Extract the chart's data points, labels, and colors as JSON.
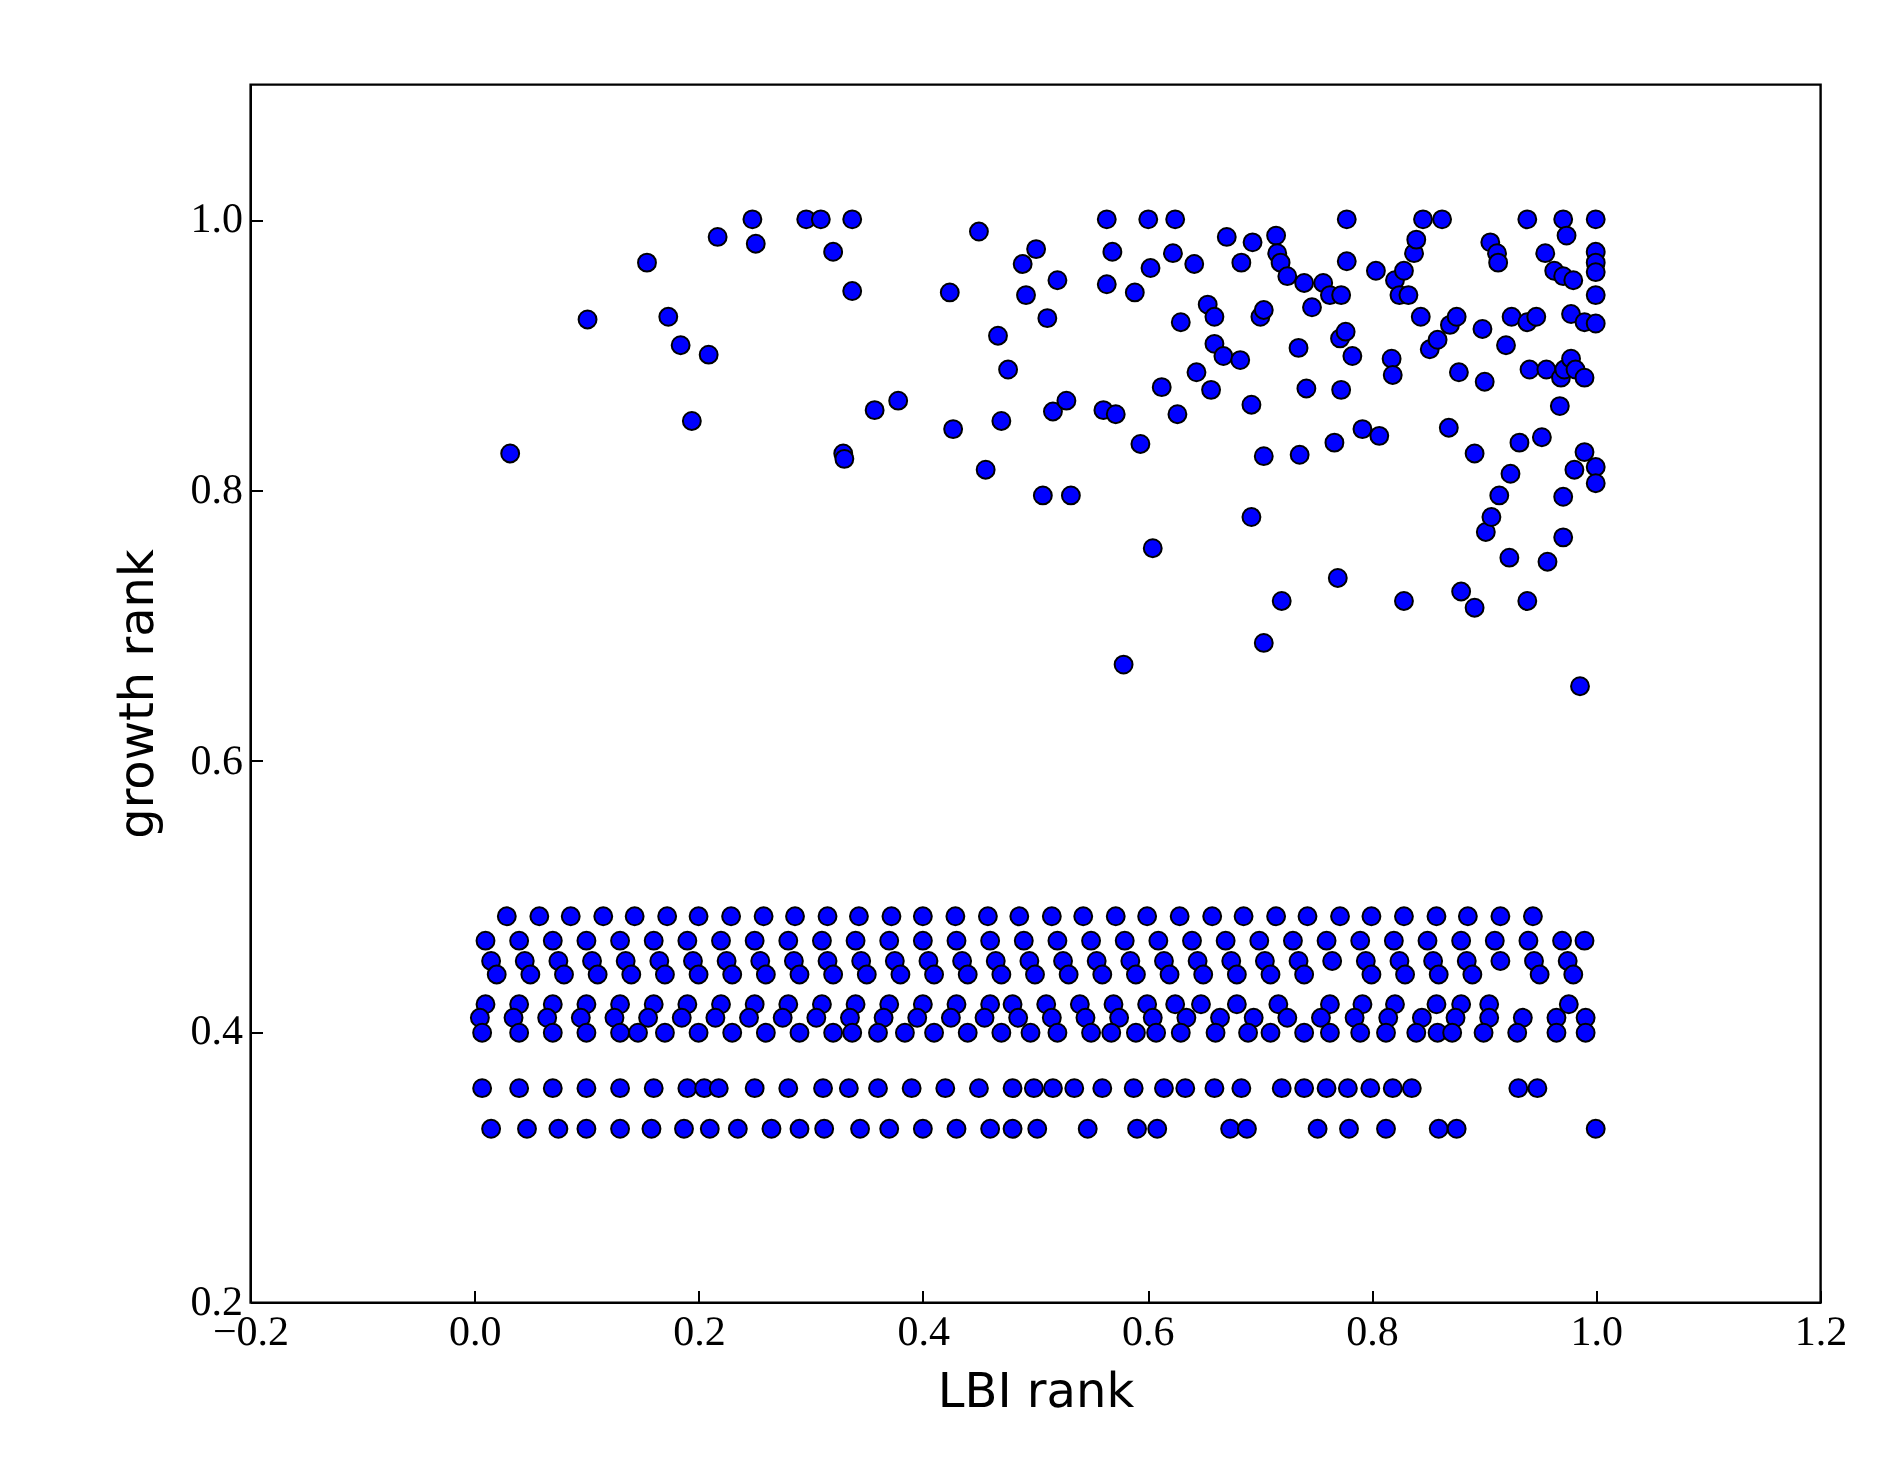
{
  "chart_data": {
    "type": "scatter",
    "xlabel": "LBI rank",
    "ylabel": "growth rank",
    "marker": "circle",
    "grid": false,
    "legend": false,
    "xlim": [
      -0.2,
      1.2
    ],
    "ylim": [
      0.2,
      1.1
    ],
    "xticks": [
      {
        "value": -0.2,
        "label": "−0.2"
      },
      {
        "value": 0,
        "label": "0.0"
      },
      {
        "value": 0.2,
        "label": "0.2"
      },
      {
        "value": 0.4,
        "label": "0.4"
      },
      {
        "value": 0.6,
        "label": "0.6"
      },
      {
        "value": 0.8,
        "label": "0.8"
      },
      {
        "value": 1,
        "label": "1.0"
      },
      {
        "value": 1.2,
        "label": "1.2"
      }
    ],
    "yticks": [
      {
        "value": 0.2,
        "label": "0.2"
      },
      {
        "value": 0.4,
        "label": "0.4"
      },
      {
        "value": 0.6,
        "label": "0.6"
      },
      {
        "value": 0.8,
        "label": "0.8"
      },
      {
        "value": 1,
        "label": "1.0"
      }
    ],
    "series": [
      {
        "color": "#0000ff",
        "x": [
          0.032,
          0.101,
          0.154,
          0.173,
          0.184,
          0.194,
          0.209,
          0.217,
          0.248,
          0.251,
          0.296,
          0.309,
          0.32,
          0.337,
          0.337,
          0.329,
          0.33,
          0.357,
          0.378,
          0.424,
          0.427,
          0.45,
          0.456,
          0.467,
          0.47,
          0.476,
          0.489,
          0.492,
          0.501,
          0.507,
          0.511,
          0.516,
          0.52,
          0.528,
          0.532,
          0.561,
          0.564,
          0.564,
          0.569,
          0.572,
          0.579,
          0.589,
          0.594,
          0.601,
          0.603,
          0.605,
          0.613,
          0.623,
          0.625,
          0.627,
          0.63,
          0.642,
          0.644,
          0.654,
          0.657,
          0.66,
          0.66,
          0.668,
          0.671,
          0.683,
          0.684,
          0.693,
          0.693,
          0.694,
          0.701,
          0.704,
          0.704,
          0.704,
          0.715,
          0.716,
          0.719,
          0.72,
          0.725,
          0.735,
          0.736,
          0.74,
          0.742,
          0.747,
          0.757,
          0.763,
          0.767,
          0.77,
          0.772,
          0.773,
          0.773,
          0.777,
          0.778,
          0.778,
          0.783,
          0.792,
          0.804,
          0.807,
          0.818,
          0.819,
          0.821,
          0.825,
          0.829,
          0.829,
          0.833,
          0.838,
          0.84,
          0.844,
          0.846,
          0.852,
          0.859,
          0.863,
          0.869,
          0.87,
          0.876,
          0.878,
          0.88,
          0.892,
          0.892,
          0.899,
          0.901,
          0.902,
          0.906,
          0.907,
          0.912,
          0.913,
          0.914,
          0.92,
          0.923,
          0.924,
          0.925,
          0.932,
          0.939,
          0.939,
          0.939,
          0.941,
          0.947,
          0.952,
          0.955,
          0.956,
          0.957,
          0.963,
          0.968,
          0.969,
          0.971,
          0.971,
          0.971,
          0.971,
          0.972,
          0.974,
          0.978,
          0.978,
          0.98,
          0.981,
          0.982,
          0.986,
          0.99,
          0.99,
          0.99,
          1.0,
          1.0,
          1.0,
          1.0,
          1.0,
          1.0,
          1.0,
          1.0
        ],
        "values": [
          0.827,
          0.926,
          0.968,
          0.928,
          0.907,
          0.851,
          0.9,
          0.987,
          1.0,
          0.982,
          1.0,
          1.0,
          0.976,
          1.0,
          0.947,
          0.827,
          0.823,
          0.859,
          0.866,
          0.946,
          0.845,
          0.991,
          0.815,
          0.914,
          0.851,
          0.889,
          0.967,
          0.944,
          0.978,
          0.796,
          0.927,
          0.858,
          0.955,
          0.866,
          0.796,
          0.859,
          1.0,
          0.952,
          0.976,
          0.856,
          0.671,
          0.946,
          0.834,
          1.0,
          0.964,
          0.757,
          0.876,
          0.975,
          1.0,
          0.856,
          0.924,
          0.967,
          0.887,
          0.937,
          0.874,
          0.928,
          0.908,
          0.899,
          0.987,
          0.896,
          0.968,
          0.863,
          0.78,
          0.983,
          0.928,
          0.933,
          0.825,
          0.687,
          0.988,
          0.975,
          0.968,
          0.718,
          0.958,
          0.905,
          0.826,
          0.953,
          0.875,
          0.935,
          0.953,
          0.944,
          0.835,
          0.735,
          0.912,
          0.944,
          0.874,
          0.917,
          1.0,
          0.969,
          0.899,
          0.845,
          0.962,
          0.84,
          0.897,
          0.885,
          0.955,
          0.944,
          0.962,
          0.718,
          0.944,
          0.975,
          0.985,
          0.928,
          1.0,
          0.904,
          0.911,
          1.0,
          0.846,
          0.922,
          0.928,
          0.887,
          0.725,
          0.827,
          0.713,
          0.919,
          0.88,
          0.769,
          0.983,
          0.78,
          0.975,
          0.968,
          0.796,
          0.907,
          0.75,
          0.812,
          0.928,
          0.835,
          1.0,
          0.924,
          0.718,
          0.889,
          0.928,
          0.839,
          0.975,
          0.889,
          0.747,
          0.962,
          0.862,
          0.883,
          0.795,
          1.0,
          0.958,
          0.765,
          0.889,
          0.988,
          0.93,
          0.897,
          0.955,
          0.815,
          0.889,
          0.655,
          0.924,
          0.883,
          0.828,
          1.0,
          0.976,
          0.968,
          0.961,
          0.944,
          0.923,
          0.817,
          0.805
        ]
      },
      {
        "color": "#0000ff",
        "x": [
          0.029,
          0.058,
          0.086,
          0.115,
          0.143,
          0.172,
          0.2,
          0.229,
          0.258,
          0.286,
          0.315,
          0.343,
          0.372,
          0.4,
          0.429,
          0.458,
          0.486,
          0.515,
          0.543,
          0.572,
          0.6,
          0.629,
          0.658,
          0.686,
          0.715,
          0.743,
          0.772,
          0.8,
          0.829,
          0.858,
          0.886,
          0.915,
          0.944
        ],
        "values": [
          0.485,
          0.485,
          0.485,
          0.485,
          0.485,
          0.485,
          0.485,
          0.485,
          0.485,
          0.485,
          0.485,
          0.485,
          0.485,
          0.485,
          0.485,
          0.485,
          0.485,
          0.485,
          0.485,
          0.485,
          0.485,
          0.485,
          0.485,
          0.485,
          0.485,
          0.485,
          0.485,
          0.485,
          0.485,
          0.485,
          0.485,
          0.485,
          0.485
        ]
      },
      {
        "color": "#0000ff",
        "x": [
          0.01,
          0.04,
          0.07,
          0.1,
          0.13,
          0.16,
          0.19,
          0.22,
          0.25,
          0.28,
          0.31,
          0.34,
          0.37,
          0.4,
          0.43,
          0.46,
          0.49,
          0.52,
          0.55,
          0.58,
          0.61,
          0.64,
          0.67,
          0.7,
          0.73,
          0.76,
          0.79,
          0.82,
          0.85,
          0.88,
          0.91,
          0.94,
          0.97,
          0.99
        ],
        "values": [
          0.467,
          0.467,
          0.467,
          0.467,
          0.467,
          0.467,
          0.467,
          0.467,
          0.467,
          0.467,
          0.467,
          0.467,
          0.467,
          0.467,
          0.467,
          0.467,
          0.467,
          0.467,
          0.467,
          0.467,
          0.467,
          0.467,
          0.467,
          0.467,
          0.467,
          0.467,
          0.467,
          0.467,
          0.467,
          0.467,
          0.467,
          0.467,
          0.467,
          0.467
        ]
      },
      {
        "color": "#0000ff",
        "x": [
          0.015,
          0.045,
          0.075,
          0.105,
          0.135,
          0.165,
          0.195,
          0.225,
          0.255,
          0.285,
          0.315,
          0.345,
          0.375,
          0.405,
          0.435,
          0.465,
          0.495,
          0.525,
          0.555,
          0.585,
          0.615,
          0.645,
          0.675,
          0.705,
          0.735,
          0.765,
          0.795,
          0.825,
          0.855,
          0.885,
          0.915,
          0.945,
          0.975
        ],
        "values": [
          0.452,
          0.452,
          0.452,
          0.452,
          0.452,
          0.452,
          0.452,
          0.452,
          0.452,
          0.452,
          0.452,
          0.452,
          0.452,
          0.452,
          0.452,
          0.452,
          0.452,
          0.452,
          0.452,
          0.452,
          0.452,
          0.452,
          0.452,
          0.452,
          0.452,
          0.452,
          0.452,
          0.452,
          0.452,
          0.452,
          0.452,
          0.452,
          0.452
        ]
      },
      {
        "color": "#0000ff",
        "x": [
          0.02,
          0.05,
          0.08,
          0.11,
          0.14,
          0.17,
          0.2,
          0.23,
          0.26,
          0.29,
          0.32,
          0.35,
          0.38,
          0.41,
          0.44,
          0.47,
          0.5,
          0.53,
          0.56,
          0.59,
          0.62,
          0.65,
          0.68,
          0.71,
          0.74,
          0.8,
          0.83,
          0.86,
          0.89,
          0.95,
          0.98
        ],
        "values": [
          0.442,
          0.442,
          0.442,
          0.442,
          0.442,
          0.442,
          0.442,
          0.442,
          0.442,
          0.442,
          0.442,
          0.442,
          0.442,
          0.442,
          0.442,
          0.442,
          0.442,
          0.442,
          0.442,
          0.442,
          0.442,
          0.442,
          0.442,
          0.442,
          0.442,
          0.442,
          0.442,
          0.442,
          0.442,
          0.442,
          0.442
        ]
      },
      {
        "color": "#0000ff",
        "x": [
          0.01,
          0.04,
          0.07,
          0.1,
          0.13,
          0.16,
          0.19,
          0.22,
          0.25,
          0.28,
          0.31,
          0.34,
          0.37,
          0.4,
          0.43,
          0.46,
          0.48,
          0.51,
          0.54,
          0.57,
          0.6,
          0.625,
          0.648,
          0.68,
          0.717,
          0.763,
          0.792,
          0.821,
          0.858,
          0.88,
          0.905,
          0.976
        ],
        "values": [
          0.42,
          0.42,
          0.42,
          0.42,
          0.42,
          0.42,
          0.42,
          0.42,
          0.42,
          0.42,
          0.42,
          0.42,
          0.42,
          0.42,
          0.42,
          0.42,
          0.42,
          0.42,
          0.42,
          0.42,
          0.42,
          0.42,
          0.42,
          0.42,
          0.42,
          0.42,
          0.42,
          0.42,
          0.42,
          0.42,
          0.42,
          0.42
        ]
      },
      {
        "color": "#0000ff",
        "x": [
          0.005,
          0.035,
          0.065,
          0.095,
          0.125,
          0.155,
          0.185,
          0.215,
          0.245,
          0.275,
          0.305,
          0.335,
          0.365,
          0.395,
          0.425,
          0.455,
          0.485,
          0.515,
          0.545,
          0.575,
          0.605,
          0.635,
          0.665,
          0.695,
          0.725,
          0.755,
          0.785,
          0.815,
          0.845,
          0.875,
          0.905,
          0.935,
          0.965,
          0.991
        ],
        "values": [
          0.41,
          0.41,
          0.41,
          0.41,
          0.41,
          0.41,
          0.41,
          0.41,
          0.41,
          0.41,
          0.41,
          0.41,
          0.41,
          0.41,
          0.41,
          0.41,
          0.41,
          0.41,
          0.41,
          0.41,
          0.41,
          0.41,
          0.41,
          0.41,
          0.41,
          0.41,
          0.41,
          0.41,
          0.41,
          0.41,
          0.41,
          0.41,
          0.41,
          0.41
        ]
      },
      {
        "color": "#0000ff",
        "x": [
          0.007,
          0.04,
          0.07,
          0.1,
          0.13,
          0.146,
          0.17,
          0.2,
          0.23,
          0.26,
          0.29,
          0.32,
          0.337,
          0.36,
          0.384,
          0.41,
          0.44,
          0.47,
          0.496,
          0.52,
          0.55,
          0.568,
          0.59,
          0.608,
          0.63,
          0.661,
          0.69,
          0.71,
          0.74,
          0.763,
          0.79,
          0.813,
          0.84,
          0.859,
          0.872,
          0.9,
          0.93,
          0.965,
          0.991
        ],
        "values": [
          0.399,
          0.399,
          0.399,
          0.399,
          0.399,
          0.399,
          0.399,
          0.399,
          0.399,
          0.399,
          0.399,
          0.399,
          0.399,
          0.399,
          0.399,
          0.399,
          0.399,
          0.399,
          0.399,
          0.399,
          0.399,
          0.399,
          0.399,
          0.399,
          0.399,
          0.399,
          0.399,
          0.399,
          0.399,
          0.399,
          0.399,
          0.399,
          0.399,
          0.399,
          0.399,
          0.399,
          0.399,
          0.399,
          0.399
        ]
      },
      {
        "color": "#0000ff",
        "x": [
          0.007,
          0.04,
          0.07,
          0.1,
          0.13,
          0.16,
          0.19,
          0.205,
          0.218,
          0.25,
          0.28,
          0.311,
          0.334,
          0.36,
          0.39,
          0.42,
          0.45,
          0.48,
          0.499,
          0.516,
          0.535,
          0.56,
          0.588,
          0.615,
          0.634,
          0.66,
          0.684,
          0.72,
          0.74,
          0.76,
          0.779,
          0.799,
          0.819,
          0.836,
          0.931,
          0.948
        ],
        "values": [
          0.358,
          0.358,
          0.358,
          0.358,
          0.358,
          0.358,
          0.358,
          0.358,
          0.358,
          0.358,
          0.358,
          0.358,
          0.358,
          0.358,
          0.358,
          0.358,
          0.358,
          0.358,
          0.358,
          0.358,
          0.358,
          0.358,
          0.358,
          0.358,
          0.358,
          0.358,
          0.358,
          0.358,
          0.358,
          0.358,
          0.358,
          0.358,
          0.358,
          0.358,
          0.358,
          0.358
        ]
      },
      {
        "color": "#0000ff",
        "x": [
          0.015,
          0.047,
          0.075,
          0.1,
          0.13,
          0.158,
          0.187,
          0.21,
          0.235,
          0.265,
          0.29,
          0.312,
          0.344,
          0.37,
          0.4,
          0.43,
          0.46,
          0.48,
          0.502,
          0.547,
          0.591,
          0.609,
          0.674,
          0.689,
          0.752,
          0.78,
          0.813,
          0.86,
          0.876,
          1.0
        ],
        "values": [
          0.328,
          0.328,
          0.328,
          0.328,
          0.328,
          0.328,
          0.328,
          0.328,
          0.328,
          0.328,
          0.328,
          0.328,
          0.328,
          0.328,
          0.328,
          0.328,
          0.328,
          0.328,
          0.328,
          0.328,
          0.328,
          0.328,
          0.328,
          0.328,
          0.328,
          0.328,
          0.328,
          0.328,
          0.328,
          0.328
        ]
      }
    ]
  }
}
